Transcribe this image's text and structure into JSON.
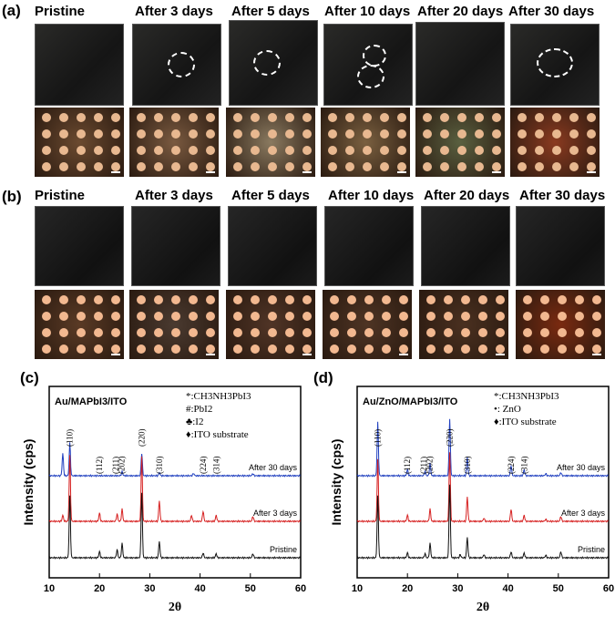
{
  "panels": {
    "a": "(a)",
    "b": "(b)",
    "c": "(c)",
    "d": "(d)"
  },
  "row_labels": [
    "Pristine",
    "After 3 days",
    "After 5 days",
    "After 10 days",
    "After 20 days",
    "After 30 days"
  ],
  "row_a_micro_colors": [
    "#6b4a30",
    "#7a5a40",
    "#8a7a60",
    "#7a6040",
    "#5a6040",
    "#8a3a20"
  ],
  "row_b_micro_colors": [
    "#5a3a25",
    "#4a3a30",
    "#503426",
    "#4e3424",
    "#4a3020",
    "#7a2a10"
  ],
  "chart_data": [
    {
      "type": "line",
      "title": "Au/MAPbI3/ITO",
      "xlabel": "2θ",
      "ylabel": "Intensity (cps)",
      "xlim": [
        10,
        60
      ],
      "xticks": [
        10,
        20,
        30,
        40,
        50,
        60
      ],
      "legend": [
        "*:CH3NH3PbI3",
        "#:PbI2",
        "♣:I2",
        "♦:ITO substrate"
      ],
      "peak_labels": [
        "(110)",
        "(112)",
        "(211)",
        "(202)",
        "(220)",
        "(310)",
        "(224)",
        "(314)"
      ],
      "series": [
        {
          "name": "After 30 days",
          "color": "#1f3fbf",
          "offset": 2,
          "peaks": [
            [
              12.7,
              0.55
            ],
            [
              14.1,
              0.8
            ],
            [
              24.5,
              0.1
            ],
            [
              28.4,
              0.55
            ],
            [
              31.9,
              0.08
            ],
            [
              38.7,
              0.06
            ],
            [
              50.5,
              0.05
            ]
          ]
        },
        {
          "name": "After 3 days",
          "color": "#d62020",
          "offset": 1,
          "peaks": [
            [
              12.7,
              0.15
            ],
            [
              14.1,
              1.6
            ],
            [
              20.0,
              0.2
            ],
            [
              23.5,
              0.18
            ],
            [
              24.5,
              0.3
            ],
            [
              28.4,
              1.6
            ],
            [
              31.9,
              0.5
            ],
            [
              38.3,
              0.15
            ],
            [
              40.6,
              0.25
            ],
            [
              43.2,
              0.15
            ],
            [
              50.5,
              0.12
            ]
          ]
        },
        {
          "name": "Pristine",
          "color": "#111111",
          "offset": 0,
          "peaks": [
            [
              14.1,
              1.5
            ],
            [
              20.0,
              0.15
            ],
            [
              23.5,
              0.2
            ],
            [
              24.5,
              0.35
            ],
            [
              28.4,
              1.6
            ],
            [
              31.9,
              0.4
            ],
            [
              40.6,
              0.12
            ],
            [
              43.2,
              0.1
            ],
            [
              50.5,
              0.1
            ]
          ]
        }
      ]
    },
    {
      "type": "line",
      "title": "Au/ZnO/MAPbI3/ITO",
      "xlabel": "2θ",
      "ylabel": "Intensity (cps)",
      "xlim": [
        10,
        60
      ],
      "xticks": [
        10,
        20,
        30,
        40,
        50,
        60
      ],
      "legend": [
        "*:CH3NH3PbI3",
        "•: ZnO",
        "♦:ITO substrate"
      ],
      "peak_labels": [
        "(110)",
        "(112)",
        "(211)",
        "(202)",
        "(220)",
        "(310)",
        "(224)",
        "(314)"
      ],
      "series": [
        {
          "name": "After 30 days",
          "color": "#1f3fbf",
          "offset": 2,
          "peaks": [
            [
              14.1,
              1.3
            ],
            [
              20.0,
              0.15
            ],
            [
              23.5,
              0.1
            ],
            [
              24.5,
              0.3
            ],
            [
              28.4,
              1.4
            ],
            [
              31.9,
              0.45
            ],
            [
              40.6,
              0.25
            ],
            [
              43.2,
              0.15
            ],
            [
              47.5,
              0.05
            ],
            [
              50.5,
              0.08
            ]
          ]
        },
        {
          "name": "After 3 days",
          "color": "#d62020",
          "offset": 1,
          "peaks": [
            [
              14.1,
              1.5
            ],
            [
              20.0,
              0.15
            ],
            [
              24.5,
              0.3
            ],
            [
              28.4,
              1.7
            ],
            [
              31.9,
              0.6
            ],
            [
              35.2,
              0.08
            ],
            [
              40.6,
              0.3
            ],
            [
              43.2,
              0.15
            ],
            [
              47.5,
              0.05
            ],
            [
              50.5,
              0.12
            ]
          ]
        },
        {
          "name": "Pristine",
          "color": "#111111",
          "offset": 0,
          "peaks": [
            [
              14.1,
              1.5
            ],
            [
              20.0,
              0.12
            ],
            [
              23.5,
              0.1
            ],
            [
              24.5,
              0.35
            ],
            [
              28.4,
              1.8
            ],
            [
              30.5,
              0.08
            ],
            [
              31.9,
              0.5
            ],
            [
              35.2,
              0.08
            ],
            [
              40.6,
              0.15
            ],
            [
              43.2,
              0.12
            ],
            [
              47.5,
              0.06
            ],
            [
              50.5,
              0.15
            ]
          ]
        }
      ]
    }
  ],
  "colors": {
    "blue": "#1f3fbf",
    "red": "#d62020",
    "black": "#111111"
  }
}
